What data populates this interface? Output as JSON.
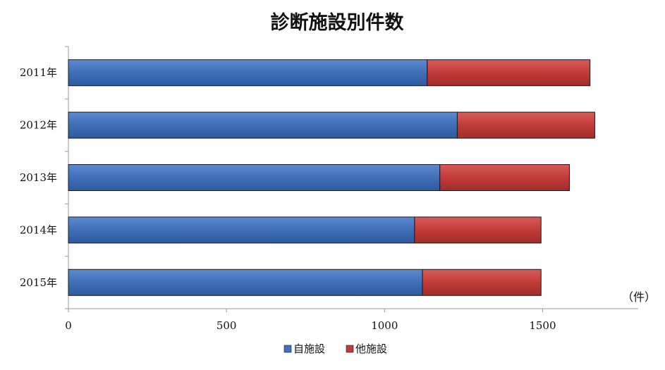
{
  "chart_data": {
    "type": "bar",
    "orientation": "horizontal",
    "stacked": true,
    "title": "診断施設別件数",
    "unit_label": "（件）",
    "categories": [
      "2011年",
      "2012年",
      "2013年",
      "2014年",
      "2015年"
    ],
    "series": [
      {
        "name": "自施設",
        "color": "#3F6FB8",
        "values": [
          1135,
          1230,
          1175,
          1095,
          1120
        ]
      },
      {
        "name": "他施設",
        "color": "#C23B38",
        "values": [
          515,
          435,
          410,
          400,
          375
        ]
      }
    ],
    "xlim": [
      0,
      1800
    ],
    "xticks": [
      0,
      500,
      1000,
      1500
    ],
    "xtick_labels": [
      "0",
      "500",
      "1000",
      "1500"
    ],
    "grid": false,
    "legend_position": "bottom"
  }
}
